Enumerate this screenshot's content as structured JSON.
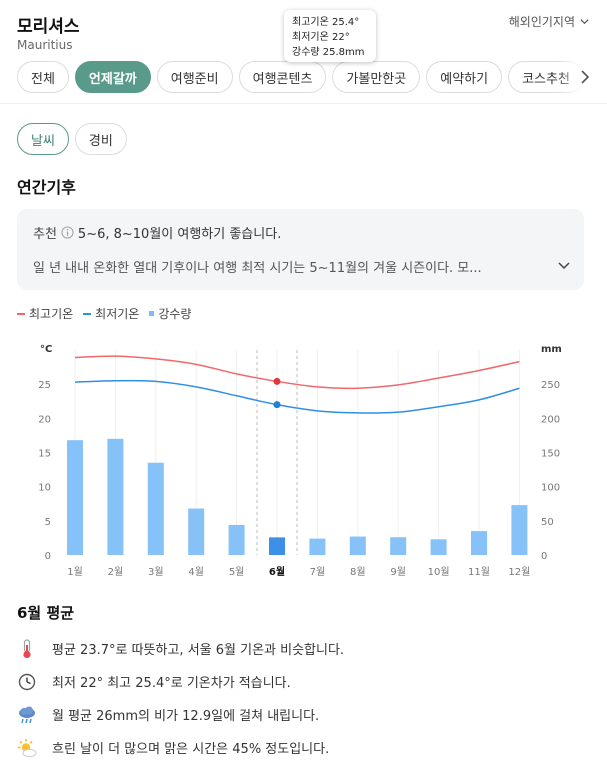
{
  "header": {
    "title": "모리셔스",
    "subtitle": "Mauritius",
    "overseas_label": "해외인기지역"
  },
  "tooltip": {
    "max": "최고기온 25.4°",
    "min": "최저기온 22°",
    "rain": "강수량 25.8mm"
  },
  "tabs": [
    {
      "label": "전체",
      "active": false
    },
    {
      "label": "언제갈까",
      "active": true
    },
    {
      "label": "여행준비",
      "active": false
    },
    {
      "label": "여행콘텐츠",
      "active": false
    },
    {
      "label": "가볼만한곳",
      "active": false
    },
    {
      "label": "예약하기",
      "active": false
    },
    {
      "label": "코스추천",
      "active": false
    }
  ],
  "subtabs": [
    {
      "label": "날씨",
      "active": true
    },
    {
      "label": "경비",
      "active": false
    }
  ],
  "section_title": "연간기후",
  "recommendation": {
    "label": "추천",
    "text": "5~6, 8~10월이 여행하기 좋습니다.",
    "description": "일 년 내내 온화한 열대 기후이나 여행 최적 시기는 5~11월의 겨울 시즌이다. 모..."
  },
  "legend": {
    "max": "최고기온",
    "min": "최저기온",
    "rain": "강수량"
  },
  "chart_data": {
    "type": "bar+line",
    "categories": [
      "1월",
      "2월",
      "3월",
      "4월",
      "5월",
      "6월",
      "7월",
      "8월",
      "9월",
      "10월",
      "11월",
      "12월"
    ],
    "selected_index": 5,
    "series": [
      {
        "name": "최고기온",
        "values": [
          28.9,
          29.1,
          28.7,
          27.9,
          26.5,
          25.4,
          24.6,
          24.4,
          24.9,
          25.9,
          27.0,
          28.3
        ],
        "axis": "left",
        "color": "#f0686b"
      },
      {
        "name": "최저기온",
        "values": [
          25.3,
          25.5,
          25.4,
          24.6,
          23.3,
          22.0,
          21.1,
          20.8,
          20.9,
          21.7,
          22.7,
          24.4
        ],
        "axis": "left",
        "color": "#2f8fe6"
      },
      {
        "name": "강수량",
        "values": [
          168,
          170,
          135,
          68,
          44,
          25.8,
          24,
          27,
          26,
          23,
          35,
          73
        ],
        "axis": "right",
        "color": "#7fbcf7"
      }
    ],
    "y_left": {
      "unit": "°C",
      "ticks": [
        0,
        5,
        10,
        15,
        20,
        25
      ],
      "range": [
        0,
        30
      ]
    },
    "y_right": {
      "unit": "mm",
      "ticks": [
        0,
        50,
        100,
        150,
        200,
        250
      ],
      "range": [
        0,
        300
      ]
    }
  },
  "average": {
    "title": "6월 평균",
    "facts": [
      {
        "icon": "thermometer-icon",
        "text": "평균 23.7°로 따뜻하고, 서울 6월 기온과 비슷합니다."
      },
      {
        "icon": "clock-icon",
        "text": "최저 22° 최고 25.4°로 기온차가 적습니다."
      },
      {
        "icon": "rain-cloud-icon",
        "text": "월 평균 26mm의 비가 12.9일에 걸쳐 내립니다."
      },
      {
        "icon": "sun-cloud-icon",
        "text": "흐린 날이 더 많으며 맑은 시간은 45% 정도입니다."
      }
    ]
  }
}
